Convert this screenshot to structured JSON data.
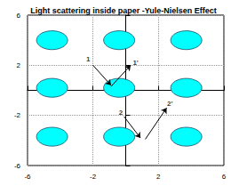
{
  "chart_data": {
    "type": "annotated",
    "title": "Light scattering inside paper -Yule-Nielsen Effect",
    "xlim": [
      -6,
      6
    ],
    "xticks": [
      -6,
      -2,
      2,
      6
    ],
    "ylim": [
      -6,
      6
    ],
    "yticks": [
      -6,
      -2,
      2,
      6
    ],
    "grid": true,
    "color": "#00ffff",
    "ellipses": [
      {
        "x": -4.5,
        "y": 4,
        "rx": 0.95,
        "ry": 0.75
      },
      {
        "x": -0.4,
        "y": 4,
        "rx": 0.95,
        "ry": 0.75
      },
      {
        "x": 3.7,
        "y": 4,
        "rx": 0.95,
        "ry": 0.75
      },
      {
        "x": -4.5,
        "y": 0.2,
        "rx": 0.95,
        "ry": 0.75
      },
      {
        "x": -0.4,
        "y": 0.2,
        "rx": 0.95,
        "ry": 0.75
      },
      {
        "x": 3.7,
        "y": 0.2,
        "rx": 0.95,
        "ry": 0.75
      },
      {
        "x": -4.5,
        "y": -3.7,
        "rx": 0.95,
        "ry": 0.75
      },
      {
        "x": -0.4,
        "y": -3.7,
        "rx": 0.95,
        "ry": 0.75
      },
      {
        "x": 3.7,
        "y": -3.7,
        "rx": 0.95,
        "ry": 0.75
      }
    ],
    "arrows": [
      {
        "from": [
          -2.0,
          2.0
        ],
        "to": [
          -0.9,
          0.4
        ]
      },
      {
        "from": [
          -0.9,
          0.3
        ],
        "to": [
          0.3,
          2.0
        ]
      },
      {
        "from": [
          -0.1,
          -2.1
        ],
        "to": [
          0.9,
          -3.8
        ]
      },
      {
        "from": [
          1.2,
          -3.9
        ],
        "to": [
          2.5,
          -1.4
        ]
      }
    ],
    "annotations": [
      {
        "text": "1",
        "x": -2.3,
        "y": 2.5
      },
      {
        "text": "1'",
        "x": 0.6,
        "y": 2.2
      },
      {
        "text": "2",
        "x": -0.3,
        "y": -1.8
      },
      {
        "text": "2'",
        "x": 2.7,
        "y": -1.1
      }
    ]
  }
}
